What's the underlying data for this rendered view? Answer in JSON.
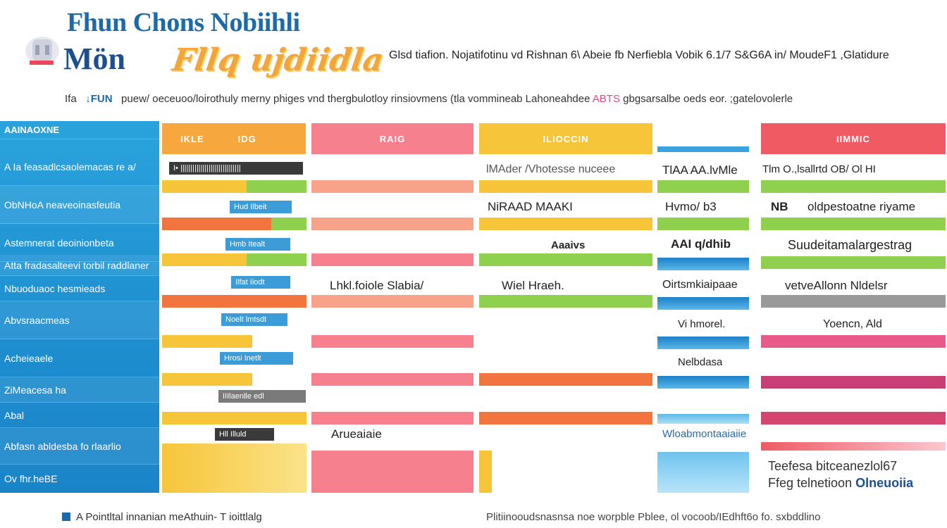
{
  "header": {
    "title_line1": "Fhun Chons Nobiihli",
    "title_line2": "Mön",
    "title_script": "Fllq ujdiidla",
    "subtitle_right": "Glsd tiafion. Nojatifotinu vd Rishnan   6\\ Abeie fb Nerfiebla Vobik 6.1/7 S&G6A in/ MoudeF1 ,Glatidure",
    "tagline_prefix": "Ifa",
    "tagline_accent": "↓FUN",
    "tagline_main": "puew/ oeceuoo/loirothuly merny phiges  vnd thergbulotloy rinsiovmens (tla vommineab Lahoneahdee",
    "tagline_pink": "ABTS",
    "tagline_suffix": "gbgsarsalbe oeds eor. ;gatelovolerle"
  },
  "sidebar": {
    "header_label": "AAINAOXNE",
    "rows": [
      "A Ia feasadlcsaolemacas  re a/",
      "ObNHoA neaveoinasfeutia",
      "Astemnerat deoinionbeta",
      "Atta fradasalteevi torbil raddlaner",
      "Nbuoduaoc hesmieads",
      "Abvsraacmeas",
      "Acheieaele",
      "ZiMeacesa ha",
      "Abal",
      "Abfasn abldesba fo rlaarlio",
      "Ov fhr.heBE"
    ]
  },
  "columns": {
    "c1": {
      "header_a": "IKLE",
      "header_b": "IDG",
      "color": "#f5a63d"
    },
    "c2": {
      "header": "RAIG",
      "color": "#f57d8e"
    },
    "c3": {
      "header": "ILIOCCIN",
      "color": "#f6c53a"
    },
    "c4": {
      "header": "",
      "color": "#3aa2dc"
    },
    "c5": {
      "header": "IIMMIC",
      "color": "#ef5a63"
    }
  },
  "chips": [
    "I•   ||||||||||||||||||||||||||||||",
    "Hud    Ilbeit",
    "Hmb    Itealt",
    "Ilfat   Iiodt",
    "Noelt   lmtsdt",
    "Hrosi   Inetlt",
    "IIIlaenlle  edl",
    "Hll    Illuld"
  ],
  "cells": {
    "c3_r1": "lMAder  /Vhotesse nuceee",
    "c3_r2": "NiRAAD     MAAKI",
    "c3_r3": "Aaaivs",
    "c3_r4": "Wiel     Hraeh.",
    "c2_r4": "Lhkl.foiole Slabia/",
    "c2_r8": "Arueaiaie",
    "c4_r1": "TlAA AA.lvMle",
    "c4_r2": "Hvmo/ b3",
    "c4_r3": "AAI q/dhib",
    "c4_r4": "Oirtsmkiaipaae",
    "c4_r5": "Vi hmorel.",
    "c4_r6": "Nelbdasa",
    "c4_r8": "Wloabmontaaiaiie",
    "c5_r1": "Tlm O.,lsallrtd OB/   Ol  HI",
    "c5_r2_a": "NB",
    "c5_r2_b": "oldpestoatne  riyame",
    "c5_r3": "Suudeitamalargestrag",
    "c5_r4": "vetveAllonn Nldelsr",
    "c5_r5": "Yoencn, Ald"
  },
  "note": {
    "line1": "Teefesa bitceanezlol67",
    "line2_plain": "Ffeg telnetioon",
    "line2_bold": "Olneuoiia"
  },
  "footer": {
    "left": "A Pointltal innanian meAthuin- T ioittlalg",
    "right": "Plitiinooudsnasnsa noe worpble Pblee, ol vocoob/IEdhft6o fo. sxbddlino"
  }
}
